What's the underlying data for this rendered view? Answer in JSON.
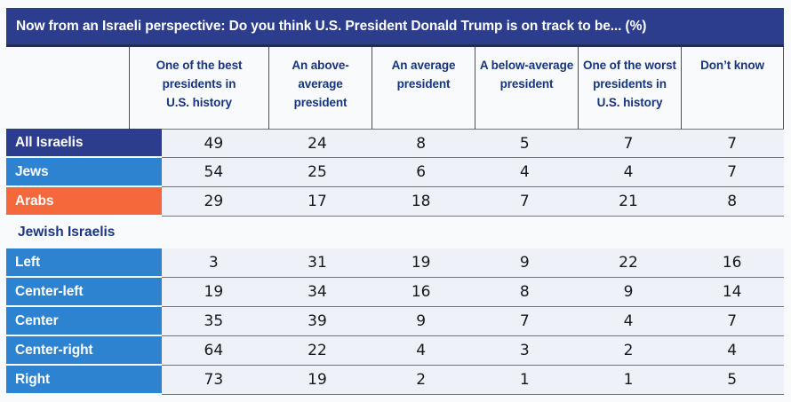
{
  "title": "Now from an Israeli perspective: Do you think U.S. President Donald Trump is on track to be... (%)",
  "section_label": "Jewish Israelis",
  "columns": [
    "One of the best\npresidents in\nU.S. history",
    "An above-\naverage\npresident",
    "An average\npresident",
    "A below-average\npresident",
    "One of the worst\npresidents in\nU.S. history",
    "Don’t know"
  ],
  "colors": {
    "navy": "#2b3d8c",
    "blue": "#2e83d1",
    "orange": "#f4683c",
    "cell_bg": "#eef1f8",
    "title_bg": "#2b3d8c",
    "header_text": "#16357e"
  },
  "groups": [
    {
      "rows": [
        {
          "label": "All Israelis",
          "color": "navy",
          "values": [
            49,
            24,
            8,
            5,
            7,
            7
          ]
        },
        {
          "label": "Jews",
          "color": "blue",
          "values": [
            54,
            25,
            6,
            4,
            4,
            7
          ]
        },
        {
          "label": "Arabs",
          "color": "orange",
          "values": [
            29,
            17,
            18,
            7,
            21,
            8
          ]
        }
      ]
    },
    {
      "rows": [
        {
          "label": "Left",
          "color": "blue",
          "values": [
            3,
            31,
            19,
            9,
            22,
            16
          ]
        },
        {
          "label": "Center-left",
          "color": "blue",
          "values": [
            19,
            34,
            16,
            8,
            9,
            14
          ]
        },
        {
          "label": "Center",
          "color": "blue",
          "values": [
            35,
            39,
            9,
            7,
            4,
            7
          ]
        },
        {
          "label": "Center-right",
          "color": "blue",
          "values": [
            64,
            22,
            4,
            3,
            2,
            4
          ]
        },
        {
          "label": "Right",
          "color": "blue",
          "values": [
            73,
            19,
            2,
            1,
            1,
            5
          ]
        }
      ]
    }
  ],
  "chart_data": {
    "type": "table",
    "title": "Now from an Israeli perspective: Do you think U.S. President Donald Trump is on track to be... (%)",
    "unit": "percent",
    "columns": [
      "One of the best presidents in U.S. history",
      "An above-average president",
      "An average president",
      "A below-average president",
      "One of the worst presidents in U.S. history",
      "Don’t know"
    ],
    "rows": [
      {
        "group": "All Israelis",
        "values": [
          49,
          24,
          8,
          5,
          7,
          7
        ]
      },
      {
        "group": "Jews",
        "values": [
          54,
          25,
          6,
          4,
          4,
          7
        ]
      },
      {
        "group": "Arabs",
        "values": [
          29,
          17,
          18,
          7,
          21,
          8
        ]
      },
      {
        "group": "Left (Jewish Israelis)",
        "values": [
          3,
          31,
          19,
          9,
          22,
          16
        ]
      },
      {
        "group": "Center-left (Jewish Israelis)",
        "values": [
          19,
          34,
          16,
          8,
          9,
          14
        ]
      },
      {
        "group": "Center (Jewish Israelis)",
        "values": [
          35,
          39,
          9,
          7,
          4,
          7
        ]
      },
      {
        "group": "Center-right (Jewish Israelis)",
        "values": [
          64,
          22,
          4,
          3,
          2,
          4
        ]
      },
      {
        "group": "Right (Jewish Israelis)",
        "values": [
          73,
          19,
          2,
          1,
          1,
          5
        ]
      }
    ]
  }
}
